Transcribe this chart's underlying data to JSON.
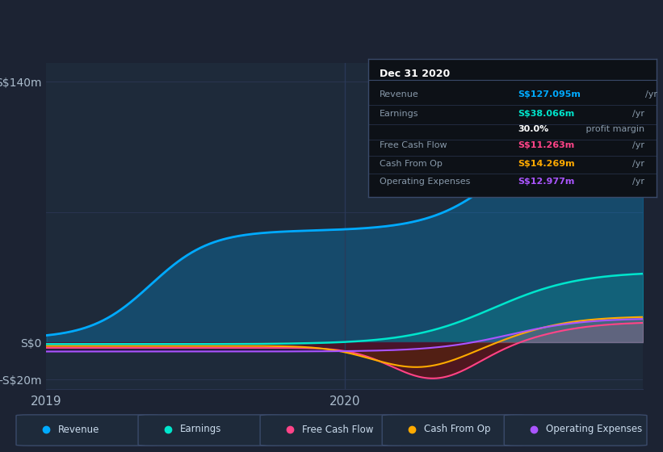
{
  "bg_color": "#1c2333",
  "plot_bg_color": "#1e2a3a",
  "grid_color": "#2a3550",
  "x_label_2019": "2019",
  "x_label_2020": "2020",
  "ytick_labels": [
    "-S$20m",
    "S$0",
    "S$140m"
  ],
  "series": {
    "Revenue": {
      "color": "#00aaff",
      "fill_color": "#00aaff",
      "fill_alpha": 0.25
    },
    "Earnings": {
      "color": "#00e5cc",
      "fill_color": "#00e5cc",
      "fill_alpha": 0.15
    },
    "Free Cash Flow": {
      "color": "#ff4488",
      "fill_color": "#ff4488",
      "fill_alpha": 0.15
    },
    "Cash From Op": {
      "color": "#ffaa00",
      "fill_color": "#ffaa00",
      "fill_alpha": 0.15
    },
    "Operating Expenses": {
      "color": "#aa55ff",
      "fill_color": "#aa55ff",
      "fill_alpha": 0.15
    }
  },
  "info_box": {
    "title": "Dec 31 2020",
    "bg_color": "#0d1117",
    "border_color": "#3a4a6a",
    "rows": [
      {
        "label": "Revenue",
        "value": "S$127.095m",
        "unit": "/yr",
        "value_color": "#00aaff"
      },
      {
        "label": "Earnings",
        "value": "S$38.066m",
        "unit": "/yr",
        "value_color": "#00e5cc"
      },
      {
        "label": "",
        "value": "30.0%",
        "unit": " profit margin",
        "value_color": "#ffffff"
      },
      {
        "label": "Free Cash Flow",
        "value": "S$11.263m",
        "unit": "/yr",
        "value_color": "#ff4488"
      },
      {
        "label": "Cash From Op",
        "value": "S$14.269m",
        "unit": "/yr",
        "value_color": "#ffaa00"
      },
      {
        "label": "Operating Expenses",
        "value": "S$12.977m",
        "unit": "/yr",
        "value_color": "#aa55ff"
      }
    ]
  },
  "legend_items": [
    "Revenue",
    "Earnings",
    "Free Cash Flow",
    "Cash From Op",
    "Operating Expenses"
  ],
  "legend_colors": [
    "#00aaff",
    "#00e5cc",
    "#ff4488",
    "#ffaa00",
    "#aa55ff"
  ]
}
